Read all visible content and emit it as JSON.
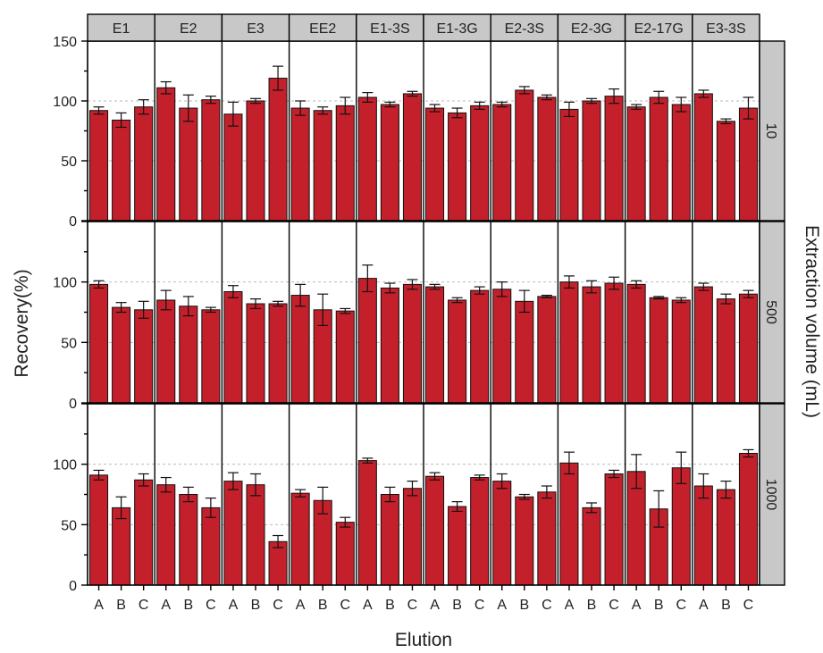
{
  "chart_data": {
    "type": "bar",
    "xlabel": "Elution",
    "ylabel": "Recovery(%)",
    "right_label": "Extraction volume (mL)",
    "ylim": [
      0,
      150
    ],
    "yticks": [
      0,
      50,
      100,
      150
    ],
    "grid": true,
    "colors": {
      "bar": "#c4202b",
      "strip": "#c8c8c8",
      "grid": "#bbbbbb"
    },
    "columns": [
      "E1",
      "E2",
      "E3",
      "EE2",
      "E1-3S",
      "E1-3G",
      "E2-3S",
      "E2-3G",
      "E2-17G",
      "E3-3S"
    ],
    "categories": [
      "A",
      "B",
      "C"
    ],
    "rows": [
      {
        "label": "10",
        "values": [
          [
            92,
            84,
            95
          ],
          [
            111,
            94,
            101
          ],
          [
            89,
            100,
            119
          ],
          [
            94,
            92,
            96
          ],
          [
            103,
            97,
            106
          ],
          [
            94,
            90,
            96
          ],
          [
            97,
            109,
            103
          ],
          [
            93,
            100,
            104
          ],
          [
            95,
            103,
            97
          ],
          [
            106,
            83,
            94
          ]
        ],
        "errors": [
          [
            3,
            6,
            6
          ],
          [
            5,
            11,
            3
          ],
          [
            10,
            2,
            10
          ],
          [
            6,
            3,
            7
          ],
          [
            4,
            2,
            2
          ],
          [
            3,
            4,
            3
          ],
          [
            2,
            3,
            2
          ],
          [
            6,
            2,
            6
          ],
          [
            2,
            5,
            6
          ],
          [
            3,
            2,
            9
          ]
        ]
      },
      {
        "label": "500",
        "values": [
          [
            98,
            79,
            77
          ],
          [
            85,
            80,
            77
          ],
          [
            92,
            82,
            82
          ],
          [
            89,
            77,
            76
          ],
          [
            103,
            95,
            98
          ],
          [
            96,
            85,
            93
          ],
          [
            94,
            84,
            88
          ],
          [
            100,
            96,
            99
          ],
          [
            98,
            87,
            85
          ],
          [
            96,
            86,
            90
          ]
        ],
        "errors": [
          [
            3,
            4,
            7
          ],
          [
            8,
            8,
            2
          ],
          [
            5,
            4,
            2
          ],
          [
            9,
            13,
            2
          ],
          [
            11,
            4,
            4
          ],
          [
            2,
            2,
            3
          ],
          [
            6,
            9,
            1
          ],
          [
            5,
            5,
            5
          ],
          [
            3,
            1,
            2
          ],
          [
            3,
            4,
            3
          ]
        ]
      },
      {
        "label": "1000",
        "values": [
          [
            91,
            64,
            87
          ],
          [
            83,
            75,
            64
          ],
          [
            86,
            83,
            36
          ],
          [
            76,
            70,
            52
          ],
          [
            103,
            75,
            80
          ],
          [
            90,
            65,
            89
          ],
          [
            86,
            73,
            77
          ],
          [
            101,
            64,
            92
          ],
          [
            94,
            63,
            97
          ],
          [
            82,
            79,
            109
          ]
        ],
        "errors": [
          [
            4,
            9,
            5
          ],
          [
            6,
            6,
            8
          ],
          [
            7,
            9,
            5
          ],
          [
            3,
            11,
            4
          ],
          [
            2,
            6,
            6
          ],
          [
            3,
            4,
            2
          ],
          [
            6,
            2,
            5
          ],
          [
            9,
            4,
            3
          ],
          [
            14,
            15,
            13
          ],
          [
            10,
            7,
            3
          ]
        ]
      }
    ]
  }
}
